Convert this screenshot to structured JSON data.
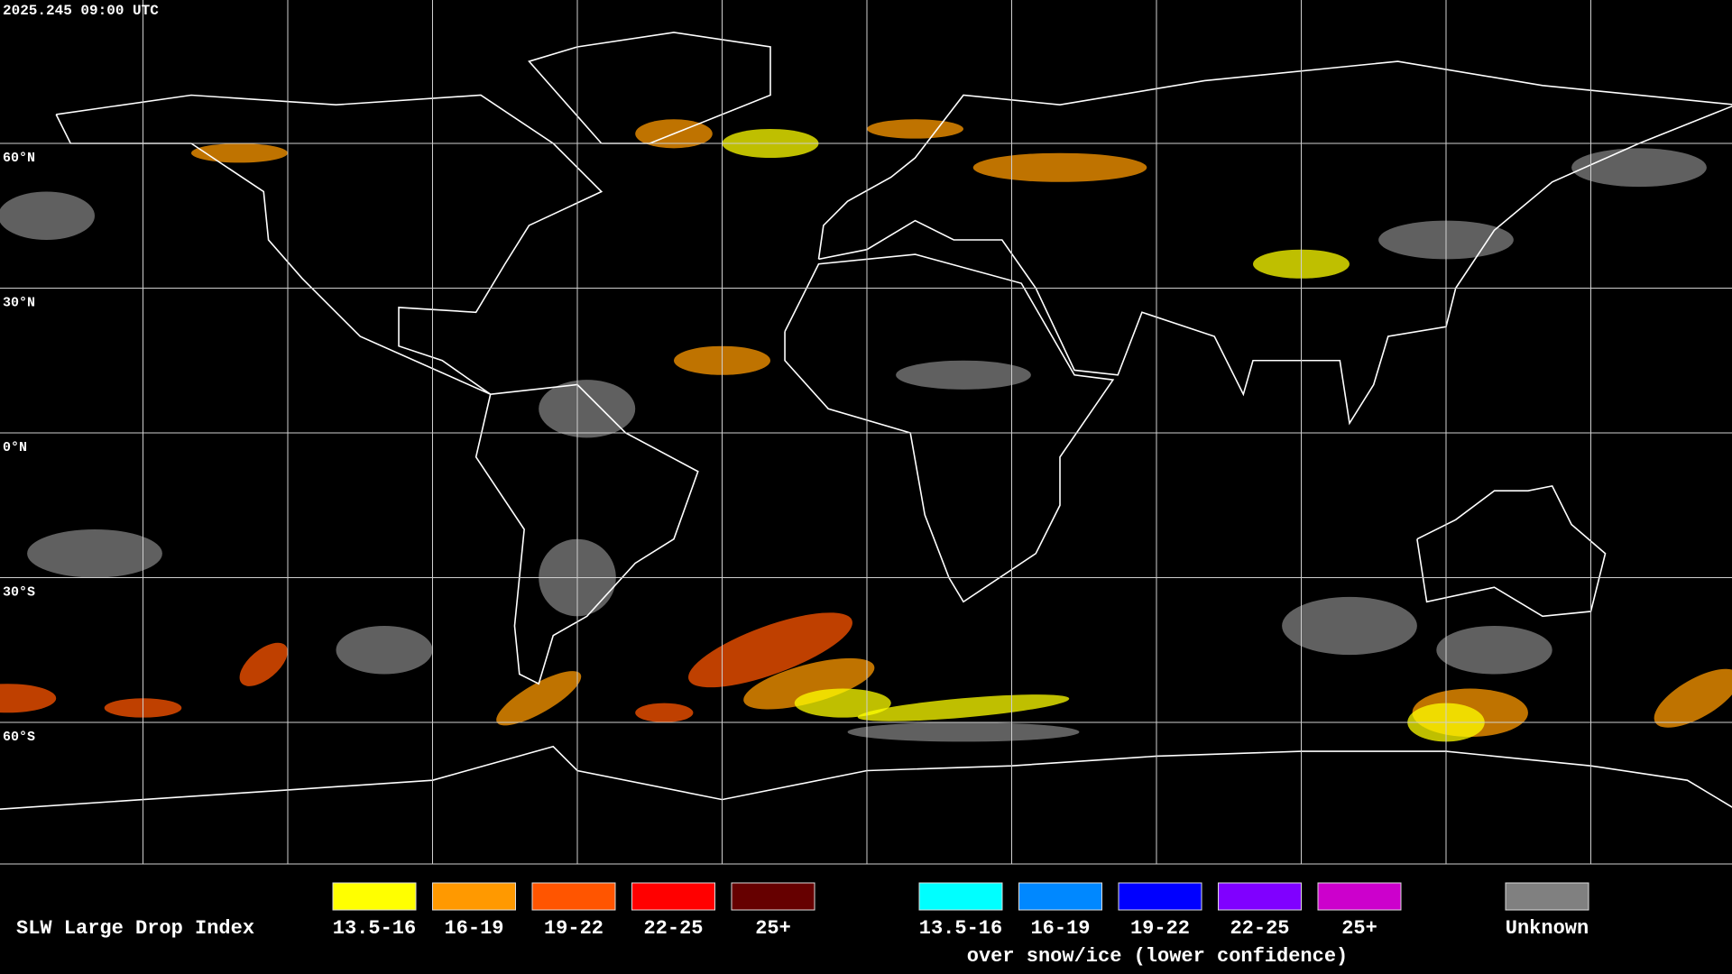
{
  "header": {
    "timestamp": "2025.245 09:00 UTC"
  },
  "map": {
    "latitude_labels": [
      "60°N",
      "30°N",
      "0°N",
      "30°S",
      "60°S"
    ]
  },
  "legend": {
    "title": "SLW Large Drop Index",
    "groups": [
      {
        "items": [
          {
            "label": "13.5-16",
            "color": "#ffff00"
          },
          {
            "label": "16-19",
            "color": "#ff9900"
          },
          {
            "label": "19-22",
            "color": "#ff5500"
          },
          {
            "label": "22-25",
            "color": "#ff0000"
          },
          {
            "label": "25+",
            "color": "#660000"
          }
        ]
      },
      {
        "items": [
          {
            "label": "13.5-16",
            "color": "#00ffff"
          },
          {
            "label": "16-19",
            "color": "#0088ff"
          },
          {
            "label": "19-22",
            "color": "#0000ff"
          },
          {
            "label": "22-25",
            "color": "#8000ff"
          },
          {
            "label": "25+",
            "color": "#cc00cc"
          }
        ],
        "caption": "over snow/ice (lower confidence)"
      },
      {
        "items": [
          {
            "label": "Unknown",
            "color": "#808080"
          }
        ]
      }
    ]
  }
}
